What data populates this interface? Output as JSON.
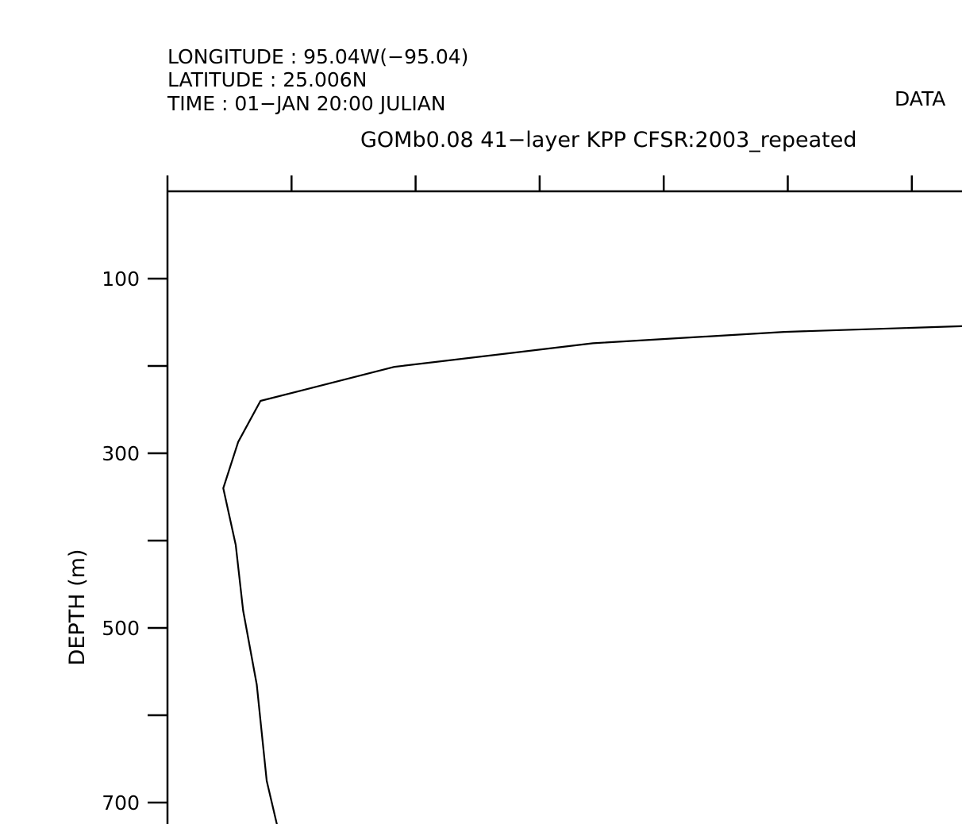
{
  "header": {
    "lines": [
      "LONGITUDE : 95.04W(−95.04)",
      "LATITUDE : 25.006N",
      "TIME : 01−JAN 20:00 JULIAN"
    ],
    "data_label": "DATA",
    "title": "GOMb0.08 41−layer KPP CFSR:2003_repeated"
  },
  "chart_data": {
    "type": "line",
    "ylabel": "DEPTH (m)",
    "xlabel": "",
    "y_inverted": true,
    "ylim": [
      0,
      700
    ],
    "y_ticks": [
      100,
      200,
      300,
      400,
      500,
      600,
      700
    ],
    "y_tick_labels": [
      "100",
      "",
      "300",
      "",
      "500",
      "",
      "700"
    ],
    "x_tick_count": 7,
    "series": [
      {
        "x": [
          6.5,
          4.97,
          3.43,
          1.83,
          0.75,
          0.57,
          0.45,
          0.55,
          0.61,
          0.72,
          0.8,
          0.94
        ],
        "y": [
          154,
          161,
          174,
          201,
          240,
          287,
          340,
          405,
          480,
          565,
          675,
          760
        ]
      }
    ]
  }
}
